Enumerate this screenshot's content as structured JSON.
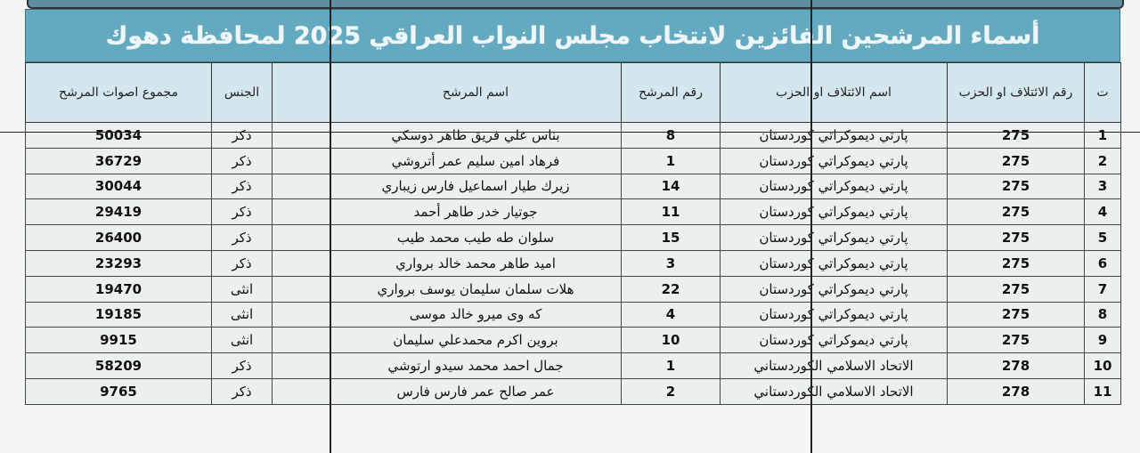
{
  "title": "أسماء المرشحين الفائزين لانتخاب مجلس النواب العراقي 2025 لمحافظة دهوك",
  "columns": {
    "seq": "ت",
    "party_no": "رقم الائتلاف او الحزب",
    "party": "اسم الائتلاف او الحزب",
    "cand_no": "رقم المرشح",
    "name": "اسم المرشح",
    "blank": "",
    "gender": "الجنس",
    "votes": "مجموع اصوات المرشح"
  },
  "rows": [
    {
      "seq": "1",
      "party_no": "275",
      "party": "پارتي ديموكراتي كوردستان",
      "cand_no": "8",
      "name": "بناس علي فريق طاهر دوسكي",
      "gender": "ذكر",
      "votes": "50034"
    },
    {
      "seq": "2",
      "party_no": "275",
      "party": "پارتي ديموكراتي كوردستان",
      "cand_no": "1",
      "name": "فرهاد امين سليم عمر أتروشي",
      "gender": "ذكر",
      "votes": "36729"
    },
    {
      "seq": "3",
      "party_no": "275",
      "party": "پارتي ديموكراتي كوردستان",
      "cand_no": "14",
      "name": "زيرك طيار اسماعيل فارس زيباري",
      "gender": "ذكر",
      "votes": "30044"
    },
    {
      "seq": "4",
      "party_no": "275",
      "party": "پارتي ديموكراتي كوردستان",
      "cand_no": "11",
      "name": "جوتيار خدر طاهر أحمد",
      "gender": "ذكر",
      "votes": "29419"
    },
    {
      "seq": "5",
      "party_no": "275",
      "party": "پارتي ديموكراتي كوردستان",
      "cand_no": "15",
      "name": "سلوان طه طيب محمد طيب",
      "gender": "ذكر",
      "votes": "26400"
    },
    {
      "seq": "6",
      "party_no": "275",
      "party": "پارتي ديموكراتي كوردستان",
      "cand_no": "3",
      "name": "اميد طاهر محمد خالد برواري",
      "gender": "ذكر",
      "votes": "23293"
    },
    {
      "seq": "7",
      "party_no": "275",
      "party": "پارتي ديموكراتي كوردستان",
      "cand_no": "22",
      "name": "هلات سلمان سليمان يوسف برواري",
      "gender": "انثى",
      "votes": "19470"
    },
    {
      "seq": "8",
      "party_no": "275",
      "party": "پارتي ديموكراتي كوردستان",
      "cand_no": "4",
      "name": "كه وى ميرو خالد موسى",
      "gender": "انثى",
      "votes": "19185"
    },
    {
      "seq": "9",
      "party_no": "275",
      "party": "پارتي ديموكراتي كوردستان",
      "cand_no": "10",
      "name": "بروين اكرم محمدعلي سليمان",
      "gender": "انثى",
      "votes": "9915"
    },
    {
      "seq": "10",
      "party_no": "278",
      "party": "الاتحاد الاسلامي الكوردستاني",
      "cand_no": "1",
      "name": "جمال احمد محمد سيدو ارتوشي",
      "gender": "ذكر",
      "votes": "58209"
    },
    {
      "seq": "11",
      "party_no": "278",
      "party": "الاتحاد الاسلامي الكوردستاني",
      "cand_no": "2",
      "name": "عمر صالح عمر فارس فارس",
      "gender": "ذكر",
      "votes": "9765"
    }
  ]
}
